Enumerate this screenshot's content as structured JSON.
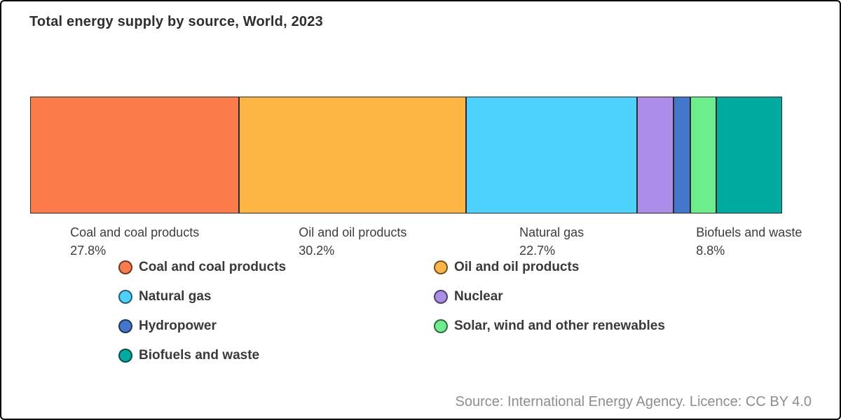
{
  "page": {
    "title": "Total energy supply by source, World, 2023",
    "source_note": "Source: International Energy Agency. Licence: CC BY 4.0"
  },
  "chart_data": {
    "type": "bar",
    "subtype": "horizontal-stacked-100-percent",
    "title": "Total energy supply by source, World, 2023",
    "unit": "%",
    "axis_range": [
      0,
      100
    ],
    "grid": false,
    "legend_position": "bottom-two-columns",
    "series": [
      {
        "name": "Coal and coal products",
        "value": 27.8,
        "color": "#fc7b4b",
        "labeled": true
      },
      {
        "name": "Oil and oil products",
        "value": 30.2,
        "color": "#fdb544",
        "labeled": true
      },
      {
        "name": "Natural gas",
        "value": 22.7,
        "color": "#4dd2fe",
        "labeled": true
      },
      {
        "name": "Nuclear",
        "value": 4.9,
        "color": "#aa8ee9",
        "labeled": false
      },
      {
        "name": "Hydropower",
        "value": 2.2,
        "color": "#4377cb",
        "labeled": false
      },
      {
        "name": "Solar, wind and other renewables",
        "value": 3.4,
        "color": "#6cee8d",
        "labeled": false
      },
      {
        "name": "Biofuels and waste",
        "value": 8.8,
        "color": "#02aba0",
        "labeled": true
      }
    ],
    "segment_labels_shown": [
      {
        "name": "Coal and coal products",
        "percent_text": "27.8%"
      },
      {
        "name": "Oil and oil products",
        "percent_text": "30.2%"
      },
      {
        "name": "Natural gas",
        "percent_text": "22.7%"
      },
      {
        "name": "Biofuels and waste",
        "percent_text": "8.8%"
      }
    ]
  }
}
